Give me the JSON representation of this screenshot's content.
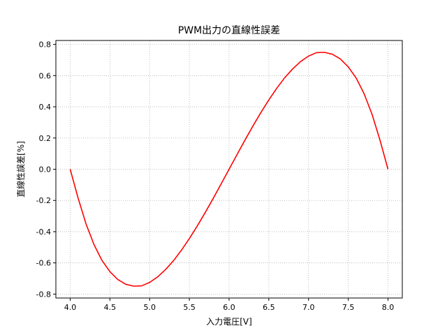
{
  "chart_data": {
    "type": "line",
    "title": "PWM出力の直線性誤差",
    "xlabel": "入力電圧[V]",
    "ylabel": "直線性誤差[%]",
    "xlim": [
      3.82,
      8.18
    ],
    "ylim": [
      -0.825,
      0.825
    ],
    "xticks": [
      "4.0",
      "4.5",
      "5.0",
      "5.5",
      "6.0",
      "6.5",
      "7.0",
      "7.5",
      "8.0"
    ],
    "yticks": [
      "-0.8",
      "-0.6",
      "-0.4",
      "-0.2",
      "0.0",
      "0.2",
      "0.4",
      "0.6",
      "0.8"
    ],
    "grid": true,
    "series_color": "#ff0000",
    "series": [
      {
        "x": [
          4.0,
          4.1,
          4.2,
          4.3,
          4.4,
          4.5,
          4.6,
          4.7,
          4.8,
          4.9,
          5.0,
          5.1,
          5.2,
          5.3,
          5.4,
          5.5,
          5.6,
          5.7,
          5.8,
          5.9,
          6.0,
          6.1,
          6.2,
          6.3,
          6.4,
          6.5,
          6.6,
          6.7,
          6.8,
          6.9,
          7.0,
          7.1,
          7.2,
          7.3,
          7.4,
          7.5,
          7.6,
          7.7,
          7.8,
          7.9,
          8.0
        ],
        "values": [
          0.0,
          -0.185,
          -0.351,
          -0.483,
          -0.584,
          -0.656,
          -0.707,
          -0.737,
          -0.749,
          -0.747,
          -0.725,
          -0.69,
          -0.643,
          -0.586,
          -0.519,
          -0.444,
          -0.363,
          -0.277,
          -0.187,
          -0.094,
          0.0,
          0.094,
          0.187,
          0.277,
          0.363,
          0.444,
          0.519,
          0.586,
          0.643,
          0.69,
          0.725,
          0.747,
          0.749,
          0.737,
          0.707,
          0.656,
          0.584,
          0.483,
          0.351,
          0.185,
          0.0
        ]
      }
    ]
  }
}
